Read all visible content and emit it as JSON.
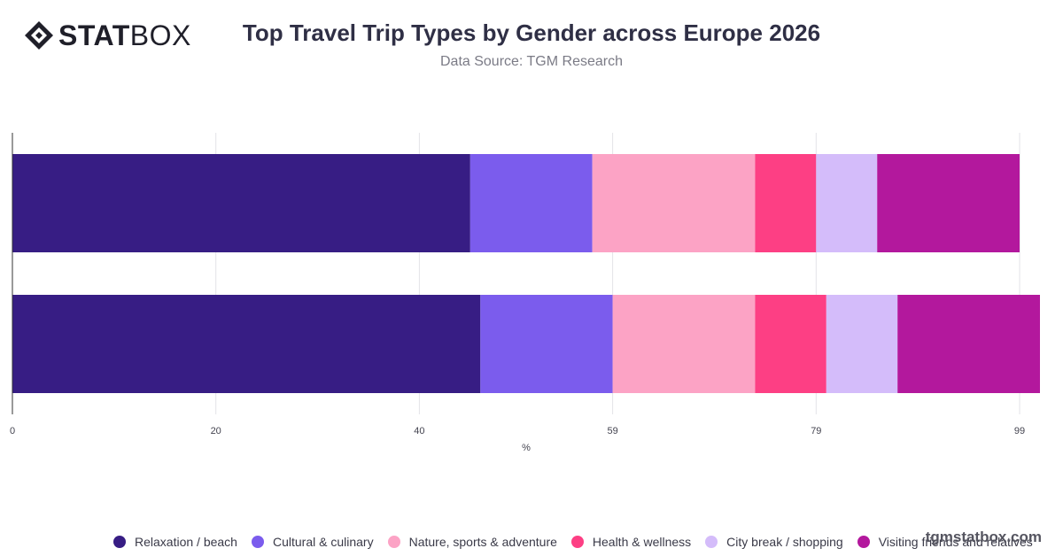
{
  "logo": {
    "text_bold": "STAT",
    "text_light": "BOX"
  },
  "header": {
    "title": "Top Travel Trip Types by Gender across Europe 2026",
    "subtitle": "Data Source: TGM Research"
  },
  "watermark": "tgmstatbox.com",
  "chart_data": {
    "type": "bar",
    "orientation": "horizontal",
    "stacked": true,
    "categories": [
      "",
      ""
    ],
    "series": [
      {
        "name": "Relaxation / beach",
        "color": "#371d84",
        "values": [
          45,
          46
        ]
      },
      {
        "name": "Cultural & culinary",
        "color": "#7b5ced",
        "values": [
          12,
          13
        ]
      },
      {
        "name": "Nature, sports & adventure",
        "color": "#fca3c5",
        "values": [
          16,
          14
        ]
      },
      {
        "name": "Health & wellness",
        "color": "#fd3f84",
        "values": [
          6,
          7
        ]
      },
      {
        "name": "City break / shopping",
        "color": "#d4bcfa",
        "values": [
          6,
          7
        ]
      },
      {
        "name": "Visiting friends and relatives",
        "color": "#b3189d",
        "values": [
          14,
          14
        ]
      }
    ],
    "xlabel": "%",
    "xlim": [
      0,
      101
    ],
    "xticks": [
      0,
      20,
      40,
      59,
      79,
      99
    ],
    "grid": true,
    "legend_position": "bottom"
  }
}
